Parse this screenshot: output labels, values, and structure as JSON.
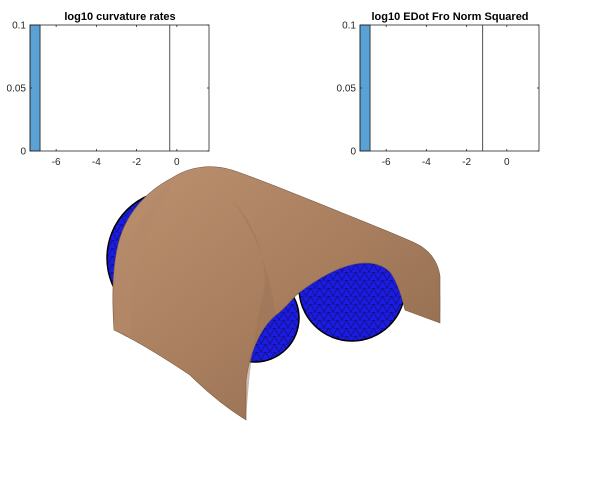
{
  "colors": {
    "bar": "#5aa2d6",
    "bar_edge": "#1a1a1a",
    "axis": "#262626",
    "sheet": "#a87e5e",
    "sphere": "#1c1ce0",
    "mesh": "#000000"
  },
  "chart_data": [
    {
      "type": "bar",
      "title": "log10 curvature rates",
      "xlabel": "",
      "ylabel": "",
      "xlim": [
        -7.3,
        1.6
      ],
      "ylim": [
        0,
        0.1
      ],
      "xticks": [
        -6,
        -4,
        -2,
        0
      ],
      "xtick_labels": [
        "-6",
        "-4",
        "-2",
        "0"
      ],
      "yticks": [
        0,
        0.05,
        0.1
      ],
      "ytick_labels": [
        "0",
        "0.05",
        "0.1"
      ],
      "bars": [
        {
          "x0": -7.3,
          "x1": -6.8,
          "value": 0.1
        }
      ],
      "reference_line_x": -0.35,
      "grid": false
    },
    {
      "type": "bar",
      "title": "log10 EDot Fro Norm Squared",
      "xlabel": "",
      "ylabel": "",
      "xlim": [
        -7.3,
        1.6
      ],
      "ylim": [
        0,
        0.1
      ],
      "xticks": [
        -6,
        -4,
        -2,
        0
      ],
      "xtick_labels": [
        "-6",
        "-4",
        "-2",
        "0"
      ],
      "yticks": [
        0,
        0.05,
        0.1
      ],
      "ytick_labels": [
        "0",
        "0.05",
        "0.1"
      ],
      "bars": [
        {
          "x0": -7.3,
          "x1": -6.8,
          "value": 0.1
        }
      ],
      "reference_line_x": -1.2,
      "grid": false
    }
  ],
  "scene": {
    "objects": [
      "sphere",
      "sphere",
      "sphere",
      "deformable-sheet"
    ]
  }
}
